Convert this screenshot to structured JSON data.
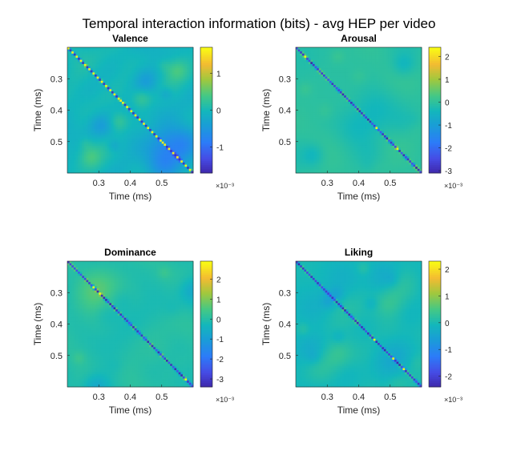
{
  "figure_title": "Temporal interaction information (bits) - avg HEP per video",
  "chart_data": [
    {
      "type": "heatmap",
      "title": "Valence",
      "xlabel": "Time (ms)",
      "ylabel": "Time (ms)",
      "x_range": [
        0.2,
        0.6
      ],
      "y_range": [
        0.2,
        0.6
      ],
      "x_ticks": [
        "0.3",
        "0.4",
        "0.5"
      ],
      "y_ticks": [
        "0.3",
        "0.4",
        "0.5"
      ],
      "y_reversed": true,
      "grid_size": 60,
      "colormap": "parula",
      "clim": [
        -1.7,
        1.7
      ],
      "colorbar_ticks": [
        "-1",
        "0",
        "1"
      ],
      "colorbar_exponent": "×10⁻³",
      "diagonal": "alternating yellow/blue",
      "seed": 11
    },
    {
      "type": "heatmap",
      "title": "Arousal",
      "xlabel": "Time (ms)",
      "ylabel": "Time (ms)",
      "x_range": [
        0.2,
        0.6
      ],
      "y_range": [
        0.2,
        0.6
      ],
      "x_ticks": [
        "0.3",
        "0.4",
        "0.5"
      ],
      "y_ticks": [
        "0.3",
        "0.4",
        "0.5"
      ],
      "y_reversed": true,
      "grid_size": 60,
      "colormap": "parula",
      "clim": [
        -3.1,
        2.4
      ],
      "colorbar_ticks": [
        "-3",
        "-2",
        "-1",
        "0",
        "1",
        "2"
      ],
      "colorbar_exponent": "×10⁻³",
      "diagonal": "mostly blue",
      "seed": 23
    },
    {
      "type": "heatmap",
      "title": "Dominance",
      "xlabel": "Time (ms)",
      "ylabel": "Time (ms)",
      "x_range": [
        0.2,
        0.6
      ],
      "y_range": [
        0.2,
        0.6
      ],
      "x_ticks": [
        "0.3",
        "0.4",
        "0.5"
      ],
      "y_ticks": [
        "0.3",
        "0.4",
        "0.5"
      ],
      "y_reversed": true,
      "grid_size": 60,
      "colormap": "parula",
      "clim": [
        -3.4,
        2.9
      ],
      "colorbar_ticks": [
        "-3",
        "-2",
        "-1",
        "0",
        "1",
        "2"
      ],
      "colorbar_exponent": "×10⁻³",
      "diagonal": "mostly blue",
      "seed": 37
    },
    {
      "type": "heatmap",
      "title": "Liking",
      "xlabel": "Time (ms)",
      "ylabel": "Time (ms)",
      "x_range": [
        0.2,
        0.6
      ],
      "y_range": [
        0.2,
        0.6
      ],
      "x_ticks": [
        "0.3",
        "0.4",
        "0.5"
      ],
      "y_ticks": [
        "0.3",
        "0.4",
        "0.5"
      ],
      "y_reversed": true,
      "grid_size": 60,
      "colormap": "parula",
      "clim": [
        -2.4,
        2.3
      ],
      "colorbar_ticks": [
        "-2",
        "-1",
        "0",
        "1",
        "2"
      ],
      "colorbar_exponent": "×10⁻³",
      "diagonal": "mostly blue",
      "seed": 53
    }
  ]
}
